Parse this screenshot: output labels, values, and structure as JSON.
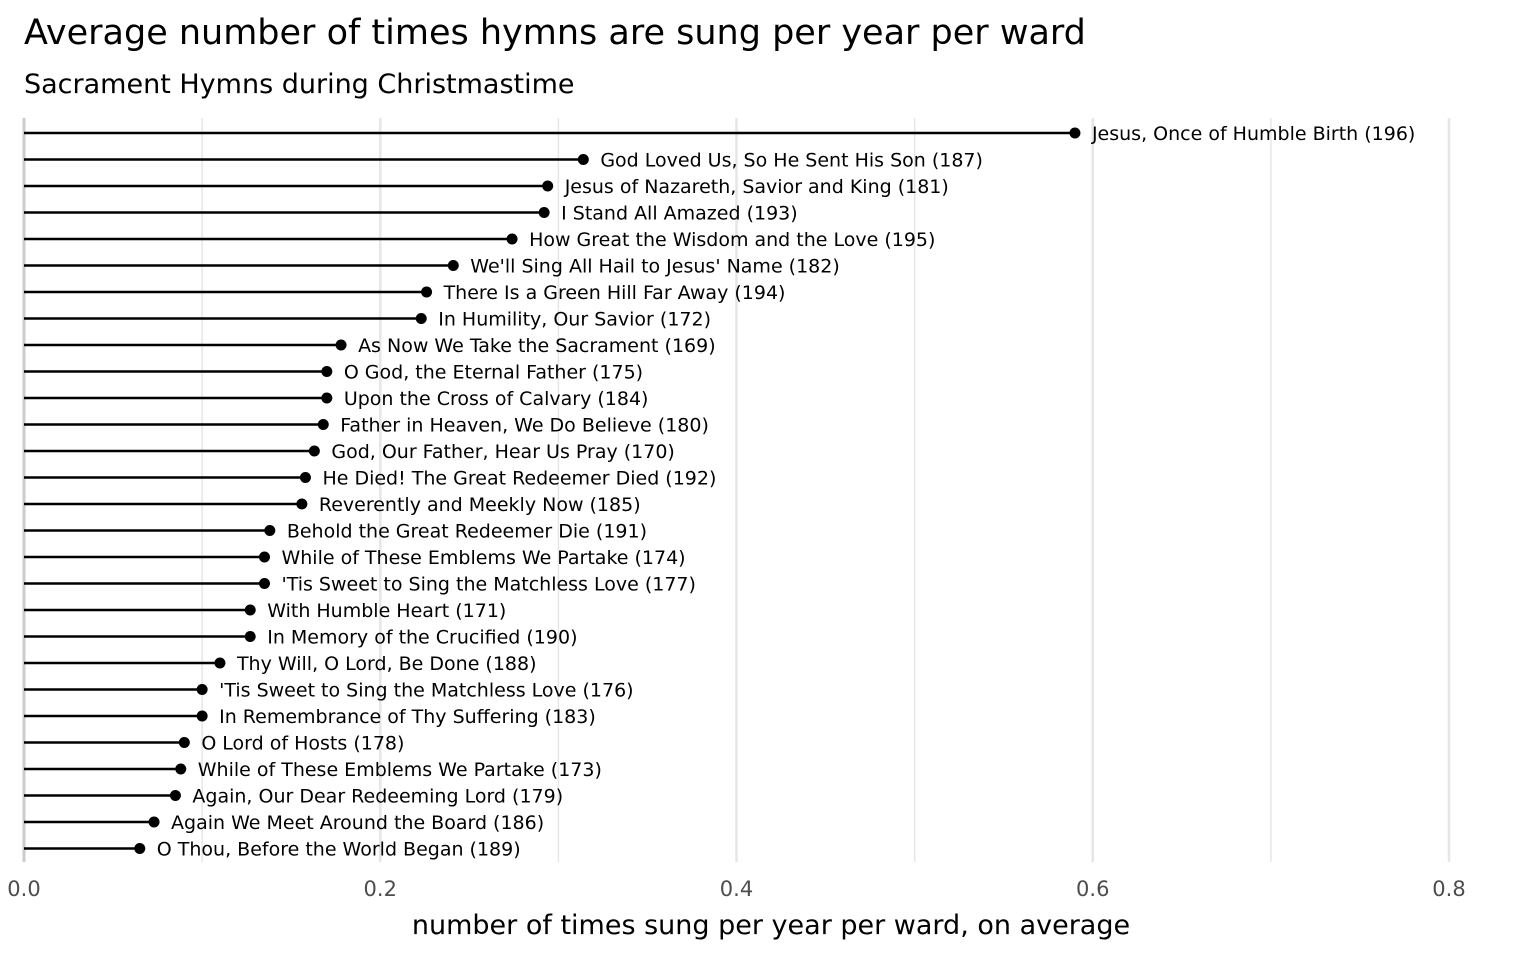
{
  "chart_data": {
    "type": "lollipop",
    "title": "Average number of times hymns are sung per year per ward",
    "subtitle": "Sacrament Hymns during Christmastime",
    "xlabel": "number of times sung per year per ward, on average",
    "xlim": [
      0,
      0.8
    ],
    "xticks": [
      0.0,
      0.2,
      0.4,
      0.6,
      0.8
    ],
    "xtick_labels": [
      "0.0",
      "0.2",
      "0.4",
      "0.6",
      "0.8"
    ],
    "grid": true,
    "colors": {
      "stem": "#000000",
      "point": "#000000",
      "grid": "#e6e6e6",
      "axis": "#cccccc"
    },
    "points": [
      {
        "label": "Jesus, Once of Humble Birth (196)",
        "value": 0.59
      },
      {
        "label": "God Loved Us, So He Sent His Son (187)",
        "value": 0.314
      },
      {
        "label": "Jesus of Nazareth, Savior and King (181)",
        "value": 0.294
      },
      {
        "label": "I Stand All Amazed (193)",
        "value": 0.292
      },
      {
        "label": "How Great the Wisdom and the Love (195)",
        "value": 0.274
      },
      {
        "label": "We'll Sing All Hail to Jesus' Name (182)",
        "value": 0.241
      },
      {
        "label": "There Is a Green Hill Far Away (194)",
        "value": 0.226
      },
      {
        "label": "In Humility, Our Savior (172)",
        "value": 0.223
      },
      {
        "label": "As Now We Take the Sacrament (169)",
        "value": 0.178
      },
      {
        "label": "O God, the Eternal Father (175)",
        "value": 0.17
      },
      {
        "label": "Upon the Cross of Calvary (184)",
        "value": 0.17
      },
      {
        "label": "Father in Heaven, We Do Believe (180)",
        "value": 0.168
      },
      {
        "label": "God, Our Father, Hear Us Pray (170)",
        "value": 0.163
      },
      {
        "label": "He Died! The Great Redeemer Died (192)",
        "value": 0.158
      },
      {
        "label": "Reverently and Meekly Now (185)",
        "value": 0.156
      },
      {
        "label": "Behold the Great Redeemer Die (191)",
        "value": 0.138
      },
      {
        "label": "While of These Emblems We Partake (174)",
        "value": 0.135
      },
      {
        "label": "'Tis Sweet to Sing the Matchless Love (177)",
        "value": 0.135
      },
      {
        "label": "With Humble Heart (171)",
        "value": 0.127
      },
      {
        "label": "In Memory of the Crucified (190)",
        "value": 0.127
      },
      {
        "label": "Thy Will, O Lord, Be Done (188)",
        "value": 0.11
      },
      {
        "label": "'Tis Sweet to Sing the Matchless Love (176)",
        "value": 0.1
      },
      {
        "label": "In Remembrance of Thy Suffering (183)",
        "value": 0.1
      },
      {
        "label": "O Lord of Hosts (178)",
        "value": 0.09
      },
      {
        "label": "While of These Emblems We Partake (173)",
        "value": 0.088
      },
      {
        "label": "Again, Our Dear Redeeming Lord (179)",
        "value": 0.085
      },
      {
        "label": "Again We Meet Around the Board (186)",
        "value": 0.073
      },
      {
        "label": "O Thou, Before the World Began (189)",
        "value": 0.065
      }
    ]
  }
}
